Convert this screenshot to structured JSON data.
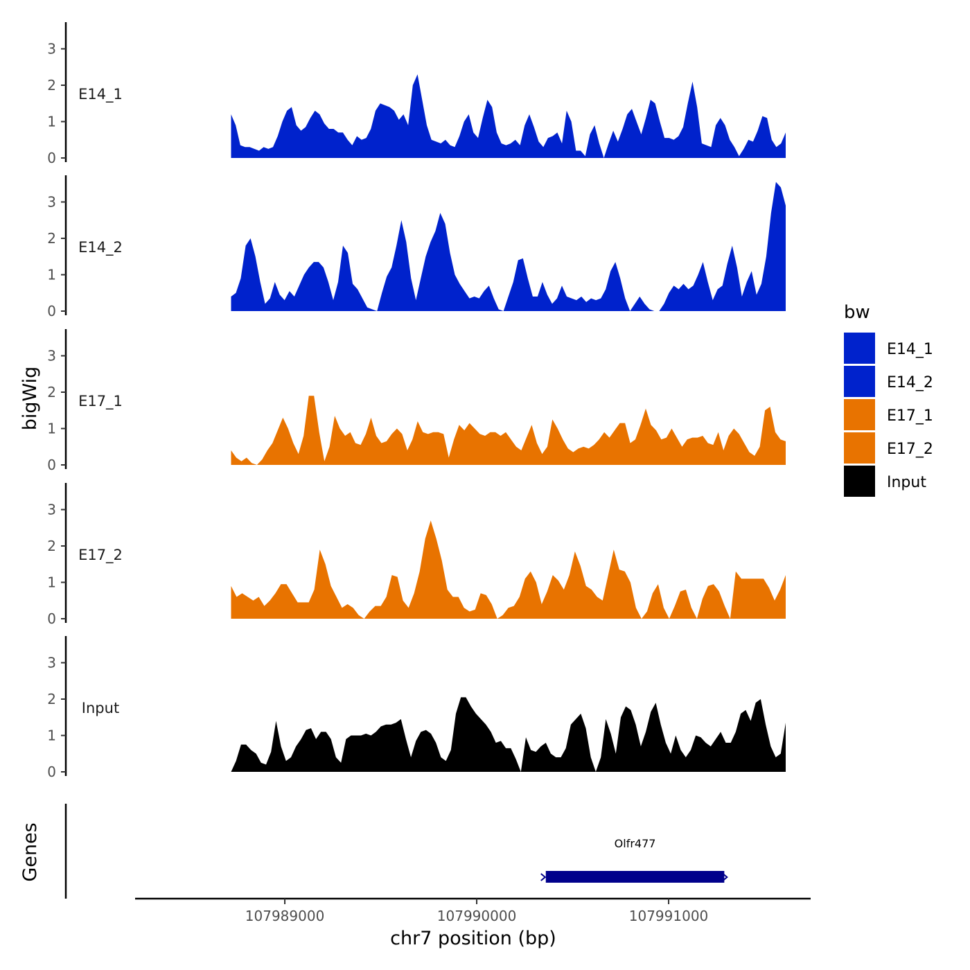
{
  "chart_data": {
    "type": "area",
    "chromosome": "chr7",
    "xlabel": "chr7 position (bp)",
    "ylabel": "bigWig",
    "genes_label": "Genes",
    "xlim": [
      107988220,
      107991740
    ],
    "x_ticks": [
      107989000,
      107990000,
      107991000
    ],
    "x_tick_labels": [
      "107989000",
      "107990000",
      "107991000"
    ],
    "ylim": [
      0,
      3.6
    ],
    "y_ticks": [
      0,
      1,
      2,
      3
    ],
    "y_tick_labels": [
      "0",
      "1",
      "2",
      "3"
    ],
    "legend_title": "bw",
    "tracks": [
      {
        "name": "E14_1",
        "color": "#0022CC",
        "x_start": 107988720,
        "x_end": 107991610,
        "values": [
          1.2,
          0.9,
          0.35,
          0.3,
          0.3,
          0.25,
          0.2,
          0.3,
          0.25,
          0.3,
          0.6,
          1.0,
          1.3,
          1.4,
          0.9,
          0.75,
          0.85,
          1.1,
          1.3,
          1.2,
          0.95,
          0.8,
          0.8,
          0.7,
          0.7,
          0.5,
          0.35,
          0.6,
          0.5,
          0.55,
          0.8,
          1.3,
          1.5,
          1.45,
          1.4,
          1.3,
          1.05,
          1.2,
          0.9,
          2.0,
          2.3,
          1.6,
          0.9,
          0.5,
          0.45,
          0.4,
          0.5,
          0.35,
          0.3,
          0.6,
          1.0,
          1.2,
          0.7,
          0.55,
          1.1,
          1.6,
          1.4,
          0.7,
          0.4,
          0.35,
          0.4,
          0.5,
          0.35,
          0.9,
          1.2,
          0.85,
          0.45,
          0.3,
          0.55,
          0.6,
          0.7,
          0.4,
          1.3,
          1.0,
          0.2,
          0.2,
          0.05,
          0.65,
          0.9,
          0.4,
          0.0,
          0.4,
          0.75,
          0.45,
          0.8,
          1.2,
          1.35,
          1.0,
          0.65,
          1.1,
          1.6,
          1.5,
          1.0,
          0.55,
          0.55,
          0.5,
          0.6,
          0.85,
          1.5,
          2.1,
          1.4,
          0.4,
          0.35,
          0.3,
          0.9,
          1.1,
          0.9,
          0.5,
          0.3,
          0.05,
          0.25,
          0.5,
          0.45,
          0.75,
          1.15,
          1.1,
          0.5,
          0.3,
          0.4,
          0.7
        ]
      },
      {
        "name": "E14_2",
        "color": "#0022CC",
        "x_start": 107988720,
        "x_end": 107991610,
        "values": [
          0.4,
          0.5,
          0.9,
          1.8,
          2.0,
          1.5,
          0.8,
          0.2,
          0.35,
          0.8,
          0.45,
          0.3,
          0.55,
          0.4,
          0.7,
          1.0,
          1.2,
          1.35,
          1.35,
          1.2,
          0.8,
          0.3,
          0.8,
          1.8,
          1.6,
          0.75,
          0.6,
          0.35,
          0.1,
          0.05,
          0.0,
          0.5,
          0.95,
          1.2,
          1.8,
          2.5,
          1.9,
          0.9,
          0.3,
          0.9,
          1.5,
          1.9,
          2.2,
          2.7,
          2.4,
          1.6,
          1.0,
          0.75,
          0.55,
          0.35,
          0.4,
          0.35,
          0.55,
          0.7,
          0.35,
          0.05,
          0.0,
          0.4,
          0.8,
          1.4,
          1.45,
          0.9,
          0.4,
          0.4,
          0.8,
          0.45,
          0.2,
          0.35,
          0.7,
          0.4,
          0.35,
          0.3,
          0.4,
          0.25,
          0.35,
          0.3,
          0.35,
          0.6,
          1.1,
          1.35,
          0.9,
          0.35,
          0.0,
          0.2,
          0.4,
          0.2,
          0.05,
          0.0,
          0.0,
          0.2,
          0.5,
          0.7,
          0.6,
          0.75,
          0.6,
          0.7,
          1.0,
          1.35,
          0.8,
          0.3,
          0.6,
          0.7,
          1.3,
          1.8,
          1.2,
          0.4,
          0.8,
          1.1,
          0.45,
          0.75,
          1.5,
          2.7,
          3.55,
          3.4,
          2.9
        ]
      },
      {
        "name": "E17_1",
        "color": "#E87300",
        "x_start": 107988720,
        "x_end": 107991610,
        "values": [
          0.4,
          0.2,
          0.1,
          0.2,
          0.05,
          0.0,
          0.15,
          0.4,
          0.6,
          0.95,
          1.3,
          1.0,
          0.6,
          0.3,
          0.8,
          1.9,
          1.9,
          0.9,
          0.1,
          0.5,
          1.35,
          1.0,
          0.8,
          0.9,
          0.6,
          0.55,
          0.85,
          1.3,
          0.8,
          0.6,
          0.65,
          0.85,
          1.0,
          0.85,
          0.4,
          0.7,
          1.2,
          0.9,
          0.85,
          0.9,
          0.9,
          0.85,
          0.2,
          0.7,
          1.1,
          0.95,
          1.15,
          1.0,
          0.85,
          0.8,
          0.9,
          0.9,
          0.8,
          0.9,
          0.7,
          0.5,
          0.4,
          0.75,
          1.1,
          0.6,
          0.3,
          0.5,
          1.25,
          1.0,
          0.7,
          0.45,
          0.35,
          0.45,
          0.5,
          0.45,
          0.55,
          0.7,
          0.9,
          0.75,
          0.95,
          1.15,
          1.15,
          0.6,
          0.7,
          1.1,
          1.55,
          1.1,
          0.95,
          0.7,
          0.75,
          1.0,
          0.75,
          0.5,
          0.7,
          0.75,
          0.75,
          0.8,
          0.6,
          0.55,
          0.9,
          0.4,
          0.8,
          1.0,
          0.85,
          0.6,
          0.35,
          0.25,
          0.5,
          1.5,
          1.6,
          0.9,
          0.7,
          0.65
        ]
      },
      {
        "name": "E17_2",
        "color": "#E87300",
        "x_start": 107988720,
        "x_end": 107991610,
        "values": [
          0.9,
          0.6,
          0.7,
          0.6,
          0.5,
          0.6,
          0.35,
          0.5,
          0.7,
          0.95,
          0.95,
          0.7,
          0.45,
          0.45,
          0.45,
          0.8,
          1.9,
          1.5,
          0.9,
          0.6,
          0.3,
          0.4,
          0.3,
          0.1,
          0.0,
          0.2,
          0.35,
          0.35,
          0.6,
          1.2,
          1.15,
          0.5,
          0.3,
          0.7,
          1.3,
          2.2,
          2.7,
          2.2,
          1.6,
          0.8,
          0.6,
          0.6,
          0.3,
          0.2,
          0.25,
          0.7,
          0.65,
          0.4,
          0.0,
          0.1,
          0.3,
          0.35,
          0.6,
          1.1,
          1.3,
          1.0,
          0.4,
          0.75,
          1.2,
          1.05,
          0.8,
          1.2,
          1.85,
          1.45,
          0.9,
          0.8,
          0.6,
          0.5,
          1.2,
          1.9,
          1.35,
          1.3,
          1.0,
          0.3,
          0.0,
          0.2,
          0.7,
          0.95,
          0.3,
          0.0,
          0.35,
          0.75,
          0.8,
          0.3,
          0.0,
          0.55,
          0.9,
          0.95,
          0.75,
          0.35,
          0.0,
          1.3,
          1.1,
          1.1,
          1.1,
          1.1,
          1.1,
          0.85,
          0.5,
          0.8,
          1.2
        ]
      },
      {
        "name": "Input",
        "color": "#000000",
        "x_start": 107988720,
        "x_end": 107991610,
        "values": [
          0.0,
          0.3,
          0.75,
          0.75,
          0.6,
          0.5,
          0.25,
          0.2,
          0.55,
          1.4,
          0.7,
          0.3,
          0.4,
          0.7,
          0.9,
          1.15,
          1.2,
          0.9,
          1.1,
          1.1,
          0.9,
          0.4,
          0.25,
          0.9,
          1.0,
          1.0,
          1.0,
          1.05,
          1.0,
          1.1,
          1.25,
          1.3,
          1.3,
          1.35,
          1.45,
          0.9,
          0.4,
          0.85,
          1.1,
          1.15,
          1.05,
          0.8,
          0.4,
          0.3,
          0.6,
          1.6,
          2.05,
          2.05,
          1.8,
          1.6,
          1.45,
          1.3,
          1.1,
          0.8,
          0.85,
          0.65,
          0.65,
          0.35,
          0.0,
          0.95,
          0.6,
          0.55,
          0.7,
          0.8,
          0.5,
          0.4,
          0.4,
          0.65,
          1.3,
          1.45,
          1.6,
          1.2,
          0.4,
          0.0,
          0.4,
          1.45,
          1.05,
          0.5,
          1.5,
          1.8,
          1.7,
          1.3,
          0.7,
          1.1,
          1.65,
          1.9,
          1.3,
          0.8,
          0.5,
          1.0,
          0.6,
          0.4,
          0.6,
          1.0,
          0.95,
          0.8,
          0.7,
          0.9,
          1.1,
          0.8,
          0.8,
          1.1,
          1.6,
          1.7,
          1.4,
          1.9,
          2.0,
          1.3,
          0.7,
          0.4,
          0.5,
          1.35
        ]
      }
    ],
    "legend": [
      {
        "label": "E14_1",
        "color": "#0022CC"
      },
      {
        "label": "E14_2",
        "color": "#0022CC"
      },
      {
        "label": "E17_1",
        "color": "#E87300"
      },
      {
        "label": "E17_2",
        "color": "#E87300"
      },
      {
        "label": "Input",
        "color": "#000000"
      }
    ],
    "genes": [
      {
        "name": "Olfr477",
        "start": 107990360,
        "end": 107991290,
        "strand": "+",
        "color": "#00008B"
      }
    ]
  }
}
